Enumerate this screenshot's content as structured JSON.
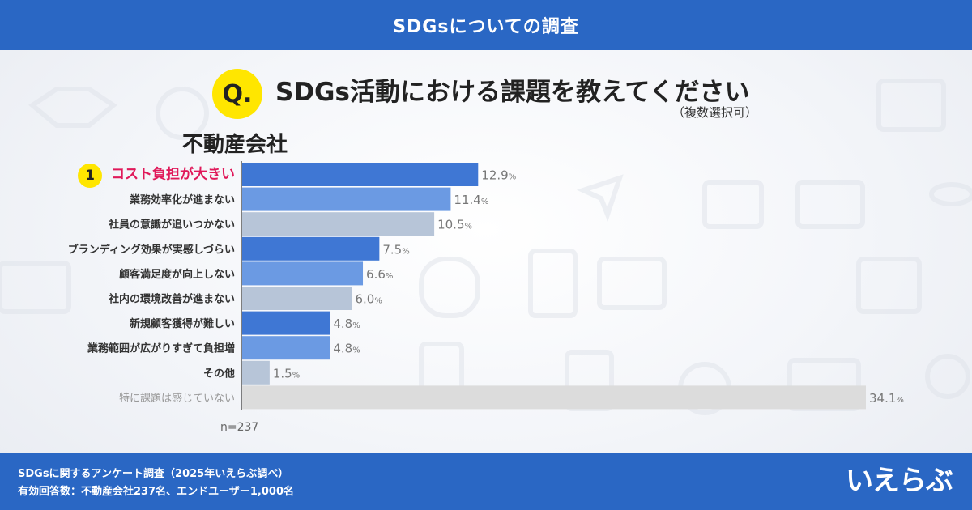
{
  "header": {
    "title": "SDGsについての調査"
  },
  "question": {
    "badge": "Q.",
    "text": "SDGs活動における課題を教えてください",
    "note": "（複数選択可）"
  },
  "group_title": "不動産会社",
  "rank_badge": "1",
  "sample": "n=237",
  "footer": {
    "line1": "SDGsに関するアンケート調査（2025年いえらぶ調べ）",
    "line2": "有効回答数：不動産会社237名、エンドユーザー1,000名",
    "logo": "いえらぶ"
  },
  "colors": {
    "header_bg": "#2a67c4",
    "bar_dark": "#3f77d4",
    "bar_mid": "#6b9ae3",
    "bar_light": "#b7c5d8",
    "bar_none": "#dcdcdc",
    "highlight": "#e0195a",
    "badge": "#ffe600"
  },
  "chart_data": {
    "type": "bar",
    "orientation": "horizontal",
    "unit": "%",
    "categories": [
      "コスト負担が大きい",
      "業務効率化が進まない",
      "社員の意識が追いつかない",
      "ブランディング効果が実感しづらい",
      "顧客満足度が向上しない",
      "社内の環境改善が進まない",
      "新規顧客獲得が難しい",
      "業務範囲が広がりすぎて負担増",
      "その他",
      "特に課題は感じていない"
    ],
    "values": [
      12.9,
      11.4,
      10.5,
      7.5,
      6.6,
      6.0,
      4.8,
      4.8,
      1.5,
      34.1
    ],
    "value_labels": [
      "12.9",
      "11.4",
      "10.5",
      "7.5",
      "6.6",
      "6.0",
      "4.8",
      "4.8",
      "1.5",
      "34.1"
    ],
    "bar_colors": [
      "bar_dark",
      "bar_mid",
      "bar_light",
      "bar_dark",
      "bar_mid",
      "bar_light",
      "bar_dark",
      "bar_mid",
      "bar_light",
      "bar_none"
    ],
    "xlim": [
      0,
      34.1
    ]
  }
}
